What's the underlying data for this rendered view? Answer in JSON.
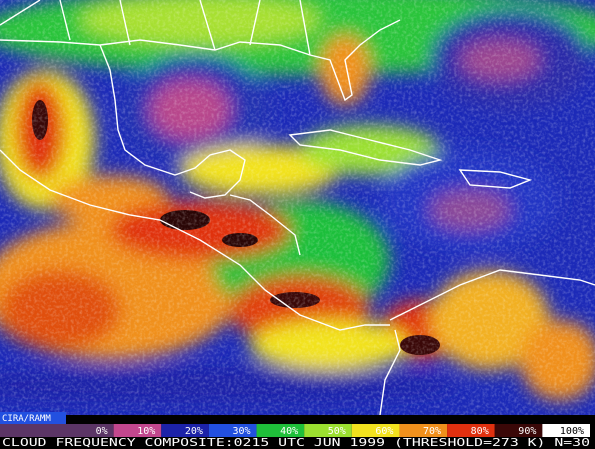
{
  "map": {
    "credit": "CIRA/RAMM",
    "legend": [
      {
        "label": "0%",
        "color": "#5b3566"
      },
      {
        "label": "10%",
        "color": "#c2478e"
      },
      {
        "label": "20%",
        "color": "#1c22a8"
      },
      {
        "label": "30%",
        "color": "#2250e0"
      },
      {
        "label": "40%",
        "color": "#1fbf3a"
      },
      {
        "label": "50%",
        "color": "#9be030"
      },
      {
        "label": "60%",
        "color": "#f2e21e"
      },
      {
        "label": "70%",
        "color": "#f0901c"
      },
      {
        "label": "80%",
        "color": "#e0300f"
      },
      {
        "label": "90%",
        "color": "#3a0808"
      },
      {
        "label": "100%",
        "color": "#ffffff"
      }
    ],
    "caption": "CLOUD FREQUENCY COMPOSITE:0215 UTC JUN 1999 (THRESHOLD=273 K) N=30"
  }
}
